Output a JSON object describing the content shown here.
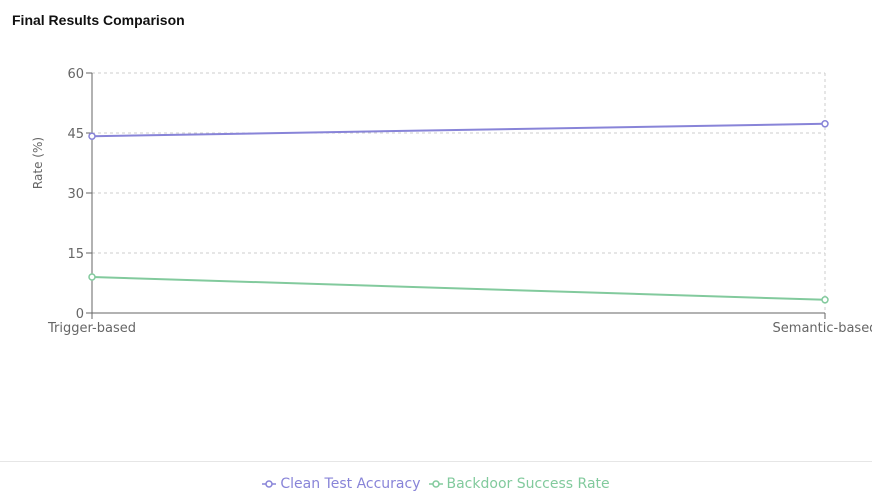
{
  "chart_data": {
    "type": "line",
    "title": "Final Results Comparison",
    "xlabel": "",
    "ylabel": "Rate (%)",
    "categories": [
      "Trigger-based",
      "Semantic-based"
    ],
    "ylim": [
      0,
      60
    ],
    "yticks": [
      0,
      15,
      30,
      45,
      60
    ],
    "grid": true,
    "legend_position": "bottom",
    "series": [
      {
        "name": "Clean Test Accuracy",
        "color": "#8884d8",
        "values": [
          44.2,
          47.3
        ]
      },
      {
        "name": "Backdoor Success Rate",
        "color": "#82ca9d",
        "values": [
          9.0,
          3.3
        ]
      }
    ]
  }
}
